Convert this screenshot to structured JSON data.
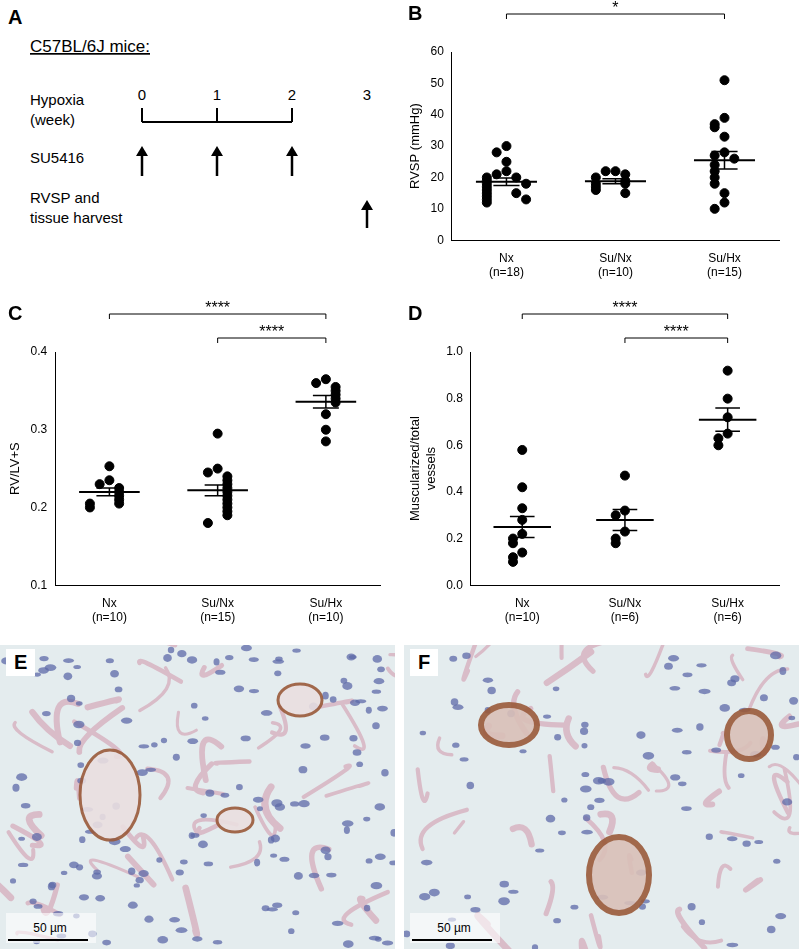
{
  "diagram": {
    "panel": "A",
    "title": "C57BL/6J mice:",
    "rows": [
      [
        "Hypoxia",
        "(week)"
      ],
      [
        "SU5416"
      ],
      [
        "RVSP and",
        "tissue harvest"
      ]
    ],
    "weeks": [
      0,
      1,
      2,
      3
    ],
    "su5416_weeks": [
      0,
      1,
      2
    ],
    "harvest_weeks": [
      3
    ]
  },
  "chart_data": [
    {
      "panel": "B",
      "type": "scatter",
      "ylabel": "RVSP (mmHg)",
      "categories": [
        [
          "Nx",
          "(n=18)"
        ],
        [
          "Su/Nx",
          "(n=10)"
        ],
        [
          "Su/Hx",
          "(n=15)"
        ]
      ],
      "color": "#000000",
      "values": [
        [
          30,
          28,
          25,
          22,
          21,
          20,
          20,
          19,
          18,
          18,
          17,
          16,
          15,
          15,
          14,
          13,
          13,
          12
        ],
        [
          22,
          22,
          21,
          20,
          19,
          18,
          18,
          17,
          16,
          15
        ],
        [
          51,
          39,
          37,
          36,
          33,
          28,
          27,
          26,
          24,
          22,
          20,
          18,
          15,
          12,
          10
        ]
      ],
      "means": [
        18.6,
        18.8,
        25.5
      ],
      "sems": [
        1.2,
        0.8,
        2.8
      ],
      "ylim": [
        0,
        60
      ],
      "yticks": [
        0,
        10,
        20,
        30,
        40,
        50,
        60
      ],
      "grid": false,
      "significance": [
        {
          "from": 0,
          "to": 2,
          "label": "*"
        }
      ]
    },
    {
      "panel": "C",
      "type": "scatter",
      "ylabel": "RV/LV+S",
      "categories": [
        [
          "Nx",
          "(n=10)"
        ],
        [
          "Su/Nx",
          "(n=15)"
        ],
        [
          "Su/Hx",
          "(n=10)"
        ]
      ],
      "color": "#000000",
      "values": [
        [
          0.253,
          0.235,
          0.23,
          0.225,
          0.22,
          0.215,
          0.21,
          0.205,
          0.205,
          0.2
        ],
        [
          0.295,
          0.25,
          0.245,
          0.24,
          0.235,
          0.23,
          0.225,
          0.22,
          0.215,
          0.21,
          0.205,
          0.2,
          0.195,
          0.19,
          0.18
        ],
        [
          0.365,
          0.36,
          0.355,
          0.35,
          0.345,
          0.34,
          0.335,
          0.32,
          0.3,
          0.285
        ]
      ],
      "means": [
        0.22,
        0.222,
        0.336
      ],
      "sems": [
        0.005,
        0.007,
        0.008
      ],
      "ylim": [
        0.1,
        0.4
      ],
      "yticks": [
        0.1,
        0.2,
        0.3,
        0.4
      ],
      "grid": false,
      "significance": [
        {
          "from": 0,
          "to": 2,
          "label": "****"
        },
        {
          "from": 1,
          "to": 2,
          "label": "****"
        }
      ]
    },
    {
      "panel": "D",
      "type": "scatter",
      "ylabel": [
        "Muscularized/total",
        "vessels"
      ],
      "categories": [
        [
          "Nx",
          "(n=10)"
        ],
        [
          "Su/Nx",
          "(n=6)"
        ],
        [
          "Su/Hx",
          "(n=6)"
        ]
      ],
      "color": "#000000",
      "values": [
        [
          0.58,
          0.42,
          0.33,
          0.28,
          0.22,
          0.2,
          0.18,
          0.14,
          0.12,
          0.1
        ],
        [
          0.47,
          0.32,
          0.3,
          0.23,
          0.2,
          0.18
        ],
        [
          0.92,
          0.8,
          0.72,
          0.65,
          0.63,
          0.6
        ]
      ],
      "means": [
        0.25,
        0.28,
        0.71
      ],
      "sems": [
        0.045,
        0.045,
        0.05
      ],
      "ylim": [
        0,
        1
      ],
      "yticks": [
        {
          "value": 0,
          "label": "0.0"
        },
        {
          "value": 0.2,
          "label": "0.2"
        },
        {
          "value": 0.4,
          "label": "0.4"
        },
        {
          "value": 0.6,
          "label": "0.6"
        },
        {
          "value": 0.8,
          "label": "0.8"
        },
        {
          "value": 1,
          "label": "1.0"
        }
      ],
      "grid": false,
      "significance": [
        {
          "from": 0,
          "to": 2,
          "label": "****"
        },
        {
          "from": 1,
          "to": 2,
          "label": "****"
        }
      ]
    }
  ],
  "images": [
    {
      "panel": "E",
      "scale_bar": "50 µm"
    },
    {
      "panel": "F",
      "scale_bar": "50 µm"
    }
  ]
}
